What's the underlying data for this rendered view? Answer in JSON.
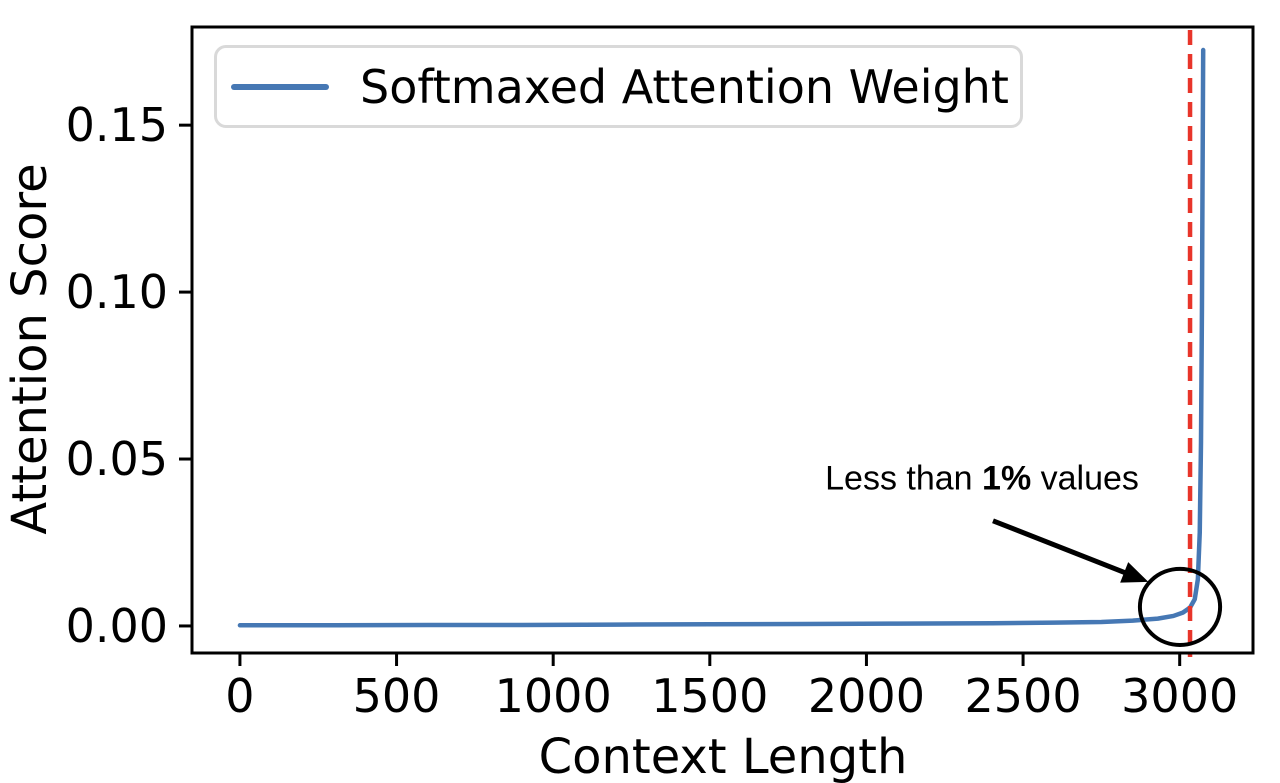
{
  "chart_data": {
    "type": "line",
    "xlabel": "Context Length",
    "ylabel": "Attention Score",
    "xlim": [
      -153,
      3234
    ],
    "ylim": [
      -0.0081,
      0.1794
    ],
    "xticks": [
      0,
      500,
      1000,
      1500,
      2000,
      2500,
      3000
    ],
    "yticks": [
      {
        "value": 0.0,
        "label": "0.00"
      },
      {
        "value": 0.05,
        "label": "0.05"
      },
      {
        "value": 0.1,
        "label": "0.10"
      },
      {
        "value": 0.15,
        "label": "0.15"
      }
    ],
    "grid": false,
    "legend": {
      "position": "upper-left",
      "entries": [
        "Softmaxed Attention Weight"
      ]
    },
    "series": [
      {
        "name": "Softmaxed Attention Weight",
        "color": "#4678b4",
        "x": [
          0,
          300,
          600,
          900,
          1200,
          1500,
          1800,
          2100,
          2400,
          2600,
          2750,
          2850,
          2930,
          2980,
          3010,
          3033,
          3048,
          3058,
          3064,
          3068,
          3071,
          3073,
          3075
        ],
        "y": [
          0.0002,
          0.0002,
          0.0003,
          0.0003,
          0.0004,
          0.0005,
          0.0006,
          0.0007,
          0.0008,
          0.001,
          0.0012,
          0.0016,
          0.0022,
          0.003,
          0.004,
          0.0055,
          0.008,
          0.014,
          0.028,
          0.055,
          0.095,
          0.135,
          0.1725
        ]
      }
    ],
    "vline": {
      "x": 3033,
      "color": "#e8352a",
      "style": "dashed"
    },
    "annotation": {
      "full_text": "Less than 1% values",
      "prefix": "Less than ",
      "bold": "1%",
      "suffix": " values",
      "color": "#000000",
      "label_pos": [
        2369,
        0.0441
      ],
      "arrow_from": [
        2404,
        0.0315
      ],
      "arrow_to": [
        2900,
        0.0132
      ],
      "circle": {
        "center": [
          3001,
          0.0057
        ],
        "rx": 128,
        "ry": 0.0114
      }
    }
  }
}
